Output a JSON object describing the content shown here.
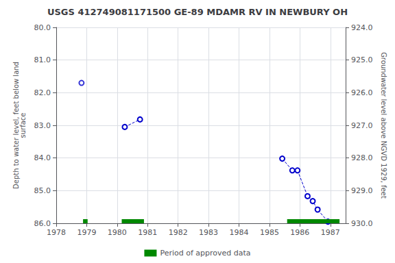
{
  "chart_data": {
    "type": "line",
    "title": "USGS 412749081171500 GE-89 MDAMR RV IN NEWBURY OH",
    "ylabel": "Depth to water level, feet below land\nsurface",
    "y2label": "Groundwater level above NGVD 1929, feet",
    "xlim": [
      1978,
      1987.5
    ],
    "xticks": [
      1978,
      1979,
      1980,
      1981,
      1982,
      1983,
      1984,
      1985,
      1986,
      1987
    ],
    "ylim": [
      86.0,
      80.0
    ],
    "yticks": [
      {
        "value": 80.0,
        "label": "80.0"
      },
      {
        "value": 81.0,
        "label": "81.0"
      },
      {
        "value": 82.0,
        "label": "82.0"
      },
      {
        "value": 83.0,
        "label": "83.0"
      },
      {
        "value": 84.0,
        "label": "84.0"
      },
      {
        "value": 85.0,
        "label": "85.0"
      },
      {
        "value": 86.0,
        "label": "86.0"
      }
    ],
    "y2lim": [
      930.0,
      924.0
    ],
    "y2ticks": [
      {
        "value": 930.0,
        "label": "930.0"
      },
      {
        "value": 929.0,
        "label": "929.0"
      },
      {
        "value": 928.0,
        "label": "928.0"
      },
      {
        "value": 927.0,
        "label": "927.0"
      },
      {
        "value": 926.0,
        "label": "926.0"
      },
      {
        "value": 925.0,
        "label": "925.0"
      },
      {
        "value": 924.0,
        "label": "924.0"
      }
    ],
    "grid": true,
    "legend": "bottom",
    "series": [
      {
        "type": "scatter",
        "color": "#0000cc",
        "marker": "circle",
        "x": [
          1978.83
        ],
        "values": [
          81.7
        ]
      },
      {
        "type": "line",
        "color": "#0000cc",
        "marker": "circle",
        "line_style": "dashed",
        "x": [
          1980.25,
          1980.75
        ],
        "values": [
          83.05,
          82.82
        ]
      },
      {
        "type": "line",
        "color": "#0000cc",
        "marker": "circle",
        "line_style": "dashed",
        "x": [
          1985.42,
          1985.75,
          1985.92,
          1986.25,
          1986.42,
          1986.58,
          1986.92
        ],
        "values": [
          84.02,
          84.38,
          84.38,
          85.17,
          85.32,
          85.58,
          85.95
        ]
      }
    ],
    "approved_periods": {
      "name": "Period of approved data",
      "color": "#008800",
      "ranges": [
        [
          1978.88,
          1979.03
        ],
        [
          1980.15,
          1980.88
        ],
        [
          1985.58,
          1987.3
        ]
      ]
    }
  }
}
